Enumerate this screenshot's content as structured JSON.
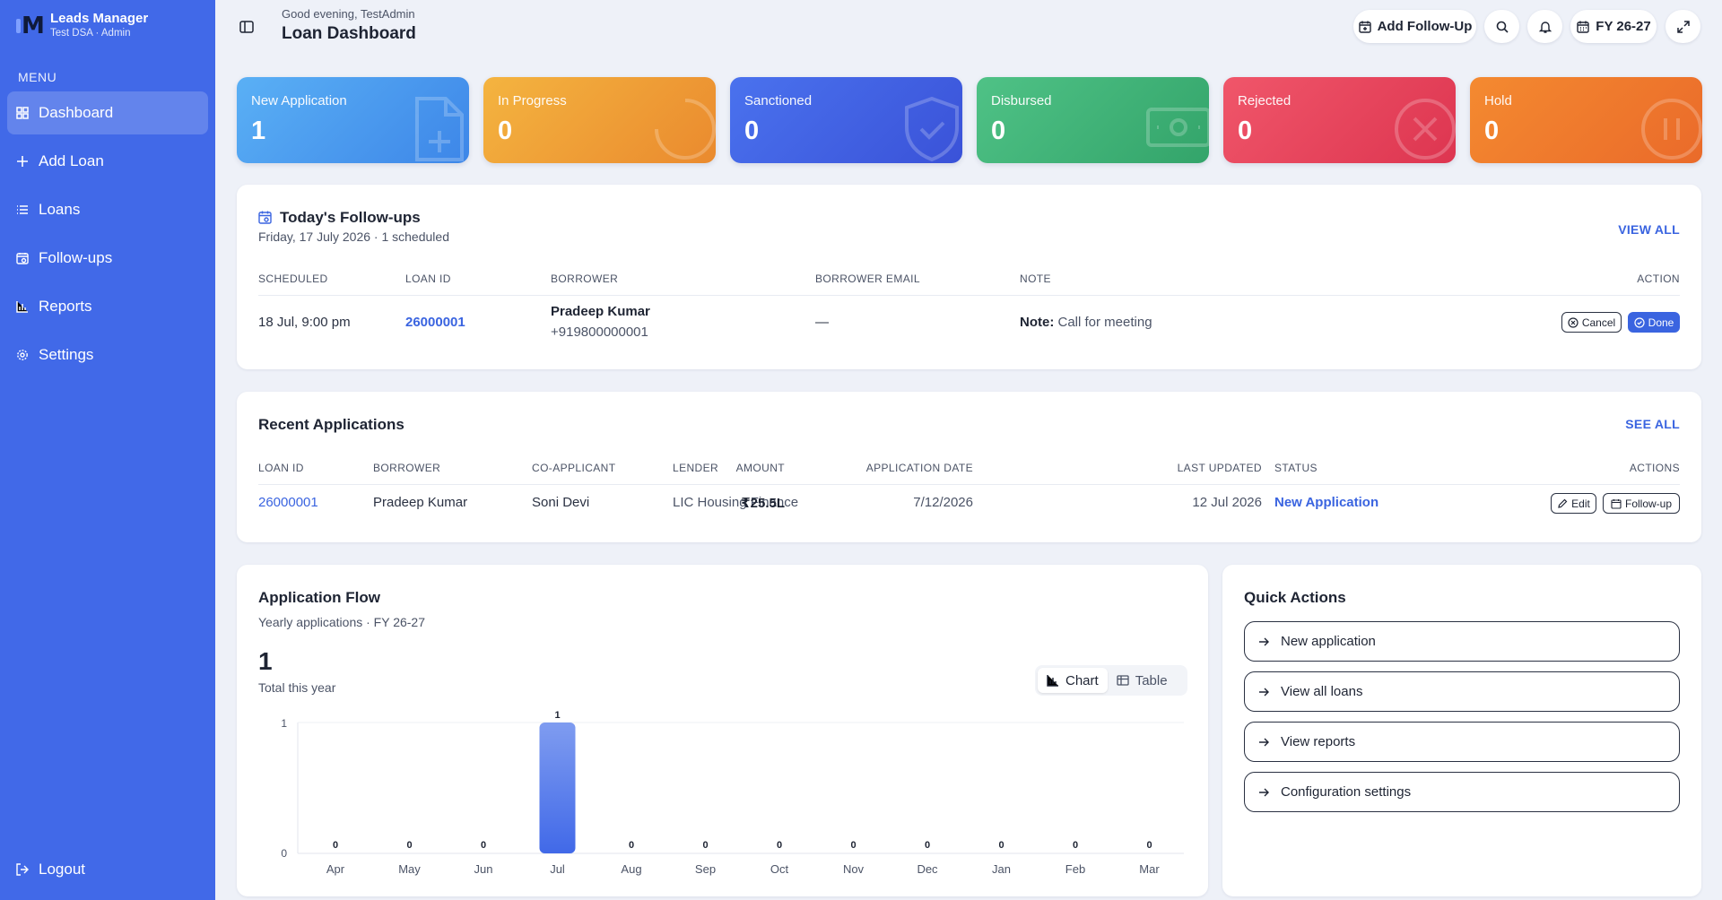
{
  "sidebar": {
    "brand_name": "Leads Manager",
    "brand_sub": "Test DSA · Admin",
    "menu_title": "MENU",
    "items": [
      {
        "label": "Dashboard",
        "icon": "grid-icon"
      },
      {
        "label": "Add Loan",
        "icon": "plus-icon"
      },
      {
        "label": "Loans",
        "icon": "list-icon"
      },
      {
        "label": "Follow-ups",
        "icon": "calendar-clock-icon"
      },
      {
        "label": "Reports",
        "icon": "bar-chart-icon"
      },
      {
        "label": "Settings",
        "icon": "gear-icon"
      }
    ],
    "logout": "Logout",
    "color": "#4169e8"
  },
  "header": {
    "greeting": "Good evening, TestAdmin",
    "title": "Loan Dashboard",
    "add_followup": "Add Follow-Up",
    "fy": "FY 26-27"
  },
  "stats": [
    {
      "label": "New Application",
      "value": "1",
      "icon": "document-plus-icon"
    },
    {
      "label": "In Progress",
      "value": "0",
      "icon": "spinner-icon"
    },
    {
      "label": "Sanctioned",
      "value": "0",
      "icon": "shield-check-icon"
    },
    {
      "label": "Disbursed",
      "value": "0",
      "icon": "banknote-icon"
    },
    {
      "label": "Rejected",
      "value": "0",
      "icon": "x-circle-icon"
    },
    {
      "label": "Hold",
      "value": "0",
      "icon": "pause-circle-icon"
    }
  ],
  "followups": {
    "title": "Today's Follow-ups",
    "subtitle": "Friday, 17 July 2026 · 1 scheduled",
    "view_all": "VIEW ALL",
    "columns": [
      "SCHEDULED",
      "LOAN ID",
      "BORROWER",
      "BORROWER EMAIL",
      "NOTE",
      "ACTION"
    ],
    "row": {
      "scheduled": "18 Jul, 9:00 pm",
      "loan_id": "26000001",
      "borrower": "Pradeep Kumar",
      "phone": "+919800000001",
      "email": "—",
      "note_label": "Note:",
      "note": "Call for meeting",
      "cancel": "Cancel",
      "done": "Done"
    }
  },
  "recent": {
    "title": "Recent Applications",
    "see_all": "SEE ALL",
    "columns": [
      "LOAN ID",
      "BORROWER",
      "CO-APPLICANT",
      "LENDER",
      "AMOUNT",
      "APPLICATION DATE",
      "LAST UPDATED",
      "STATUS",
      "ACTIONS"
    ],
    "row": {
      "loan_id": "26000001",
      "borrower": "Pradeep Kumar",
      "co_applicant": "Soni Devi",
      "lender": "LIC Housing Finance",
      "amount": "₹25.5L",
      "app_date": "7/12/2026",
      "updated": "12 Jul 2026",
      "status": "New Application",
      "edit": "Edit",
      "followup": "Follow-up"
    }
  },
  "flow": {
    "title": "Application Flow",
    "subtitle": "Yearly applications · FY 26-27",
    "total": "1",
    "total_label": "Total this year",
    "chart_btn": "Chart",
    "table_btn": "Table"
  },
  "chart_data": {
    "type": "bar",
    "categories": [
      "Apr",
      "May",
      "Jun",
      "Jul",
      "Aug",
      "Sep",
      "Oct",
      "Nov",
      "Dec",
      "Jan",
      "Feb",
      "Mar"
    ],
    "values": [
      0,
      0,
      0,
      1,
      0,
      0,
      0,
      0,
      0,
      0,
      0,
      0
    ],
    "ylim": [
      0,
      1
    ],
    "yticks": [
      "1",
      "0"
    ],
    "title": "",
    "xlabel": "",
    "ylabel": "",
    "bar_color": "#4169e8"
  },
  "quick_actions": {
    "title": "Quick Actions",
    "items": [
      "New application",
      "View all loans",
      "View reports",
      "Configuration settings"
    ]
  }
}
